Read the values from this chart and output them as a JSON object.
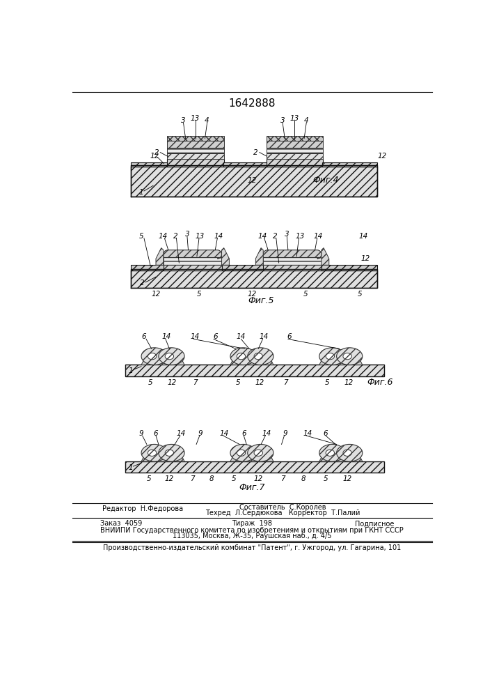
{
  "title": "1642888",
  "fig4_label": "Фиг.4",
  "fig5_label": "Фиг.5",
  "fig6_label": "Фиг.6",
  "fig7_label": "Фиг.7",
  "footer": {
    "line1_left": "Редактор  Н.Федорова",
    "line1_center": "Составитель  С.Королев",
    "line2_center": "Техред  Л.Сердюкова   Корректор  Т.Палий",
    "order": "Заказ  4059",
    "tirazh": "Тираж  198",
    "podp": "Подписное",
    "org1": "ВНИИПИ Государственного комитета по изобретениям и открытиям при ГКНТ СССР",
    "org2": "113035, Москва, Ж-35, Раушская наб., д. 4/5",
    "pub": "Производственно-издательский комбинат \"Патент\", г. Ужгород, ул. Гагарина, 101"
  }
}
